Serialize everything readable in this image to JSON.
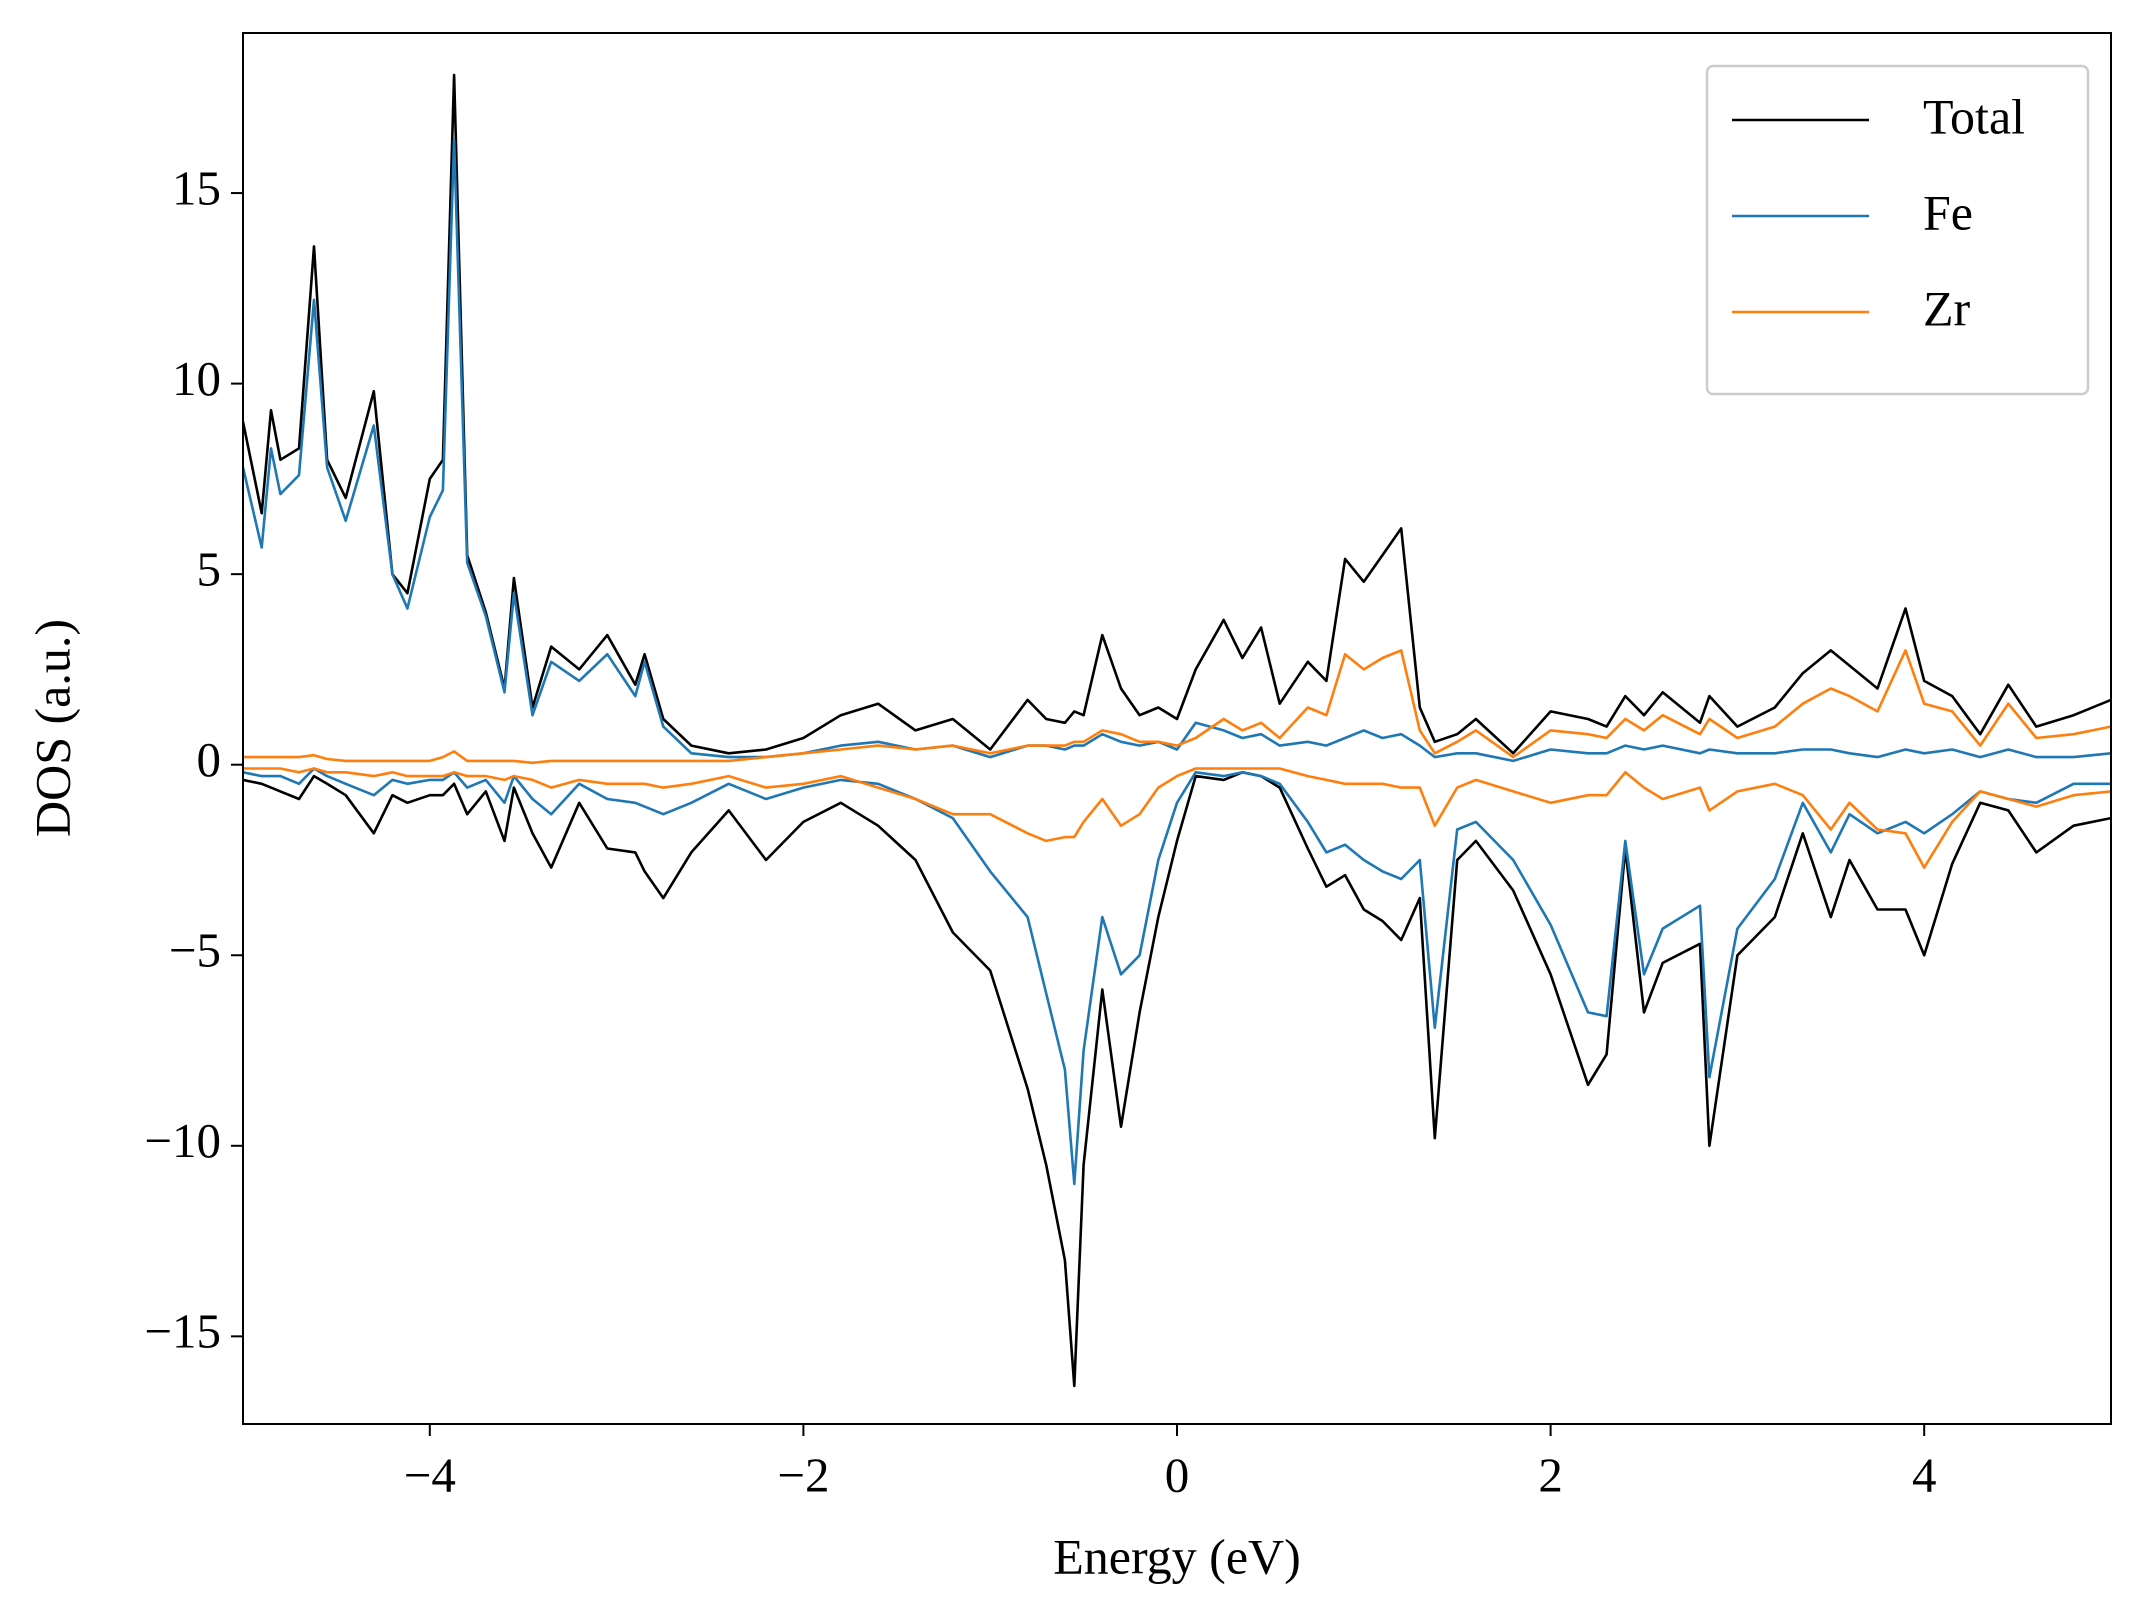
{
  "chart_data": {
    "type": "line",
    "xlabel": "Energy (eV)",
    "ylabel": "DOS (a.u.)",
    "x": [
      -5,
      -4.9,
      -4.85,
      -4.8,
      -4.7,
      -4.62,
      -4.55,
      -4.45,
      -4.3,
      -4.2,
      -4.12,
      -4.0,
      -3.93,
      -3.87,
      -3.8,
      -3.7,
      -3.6,
      -3.55,
      -3.45,
      -3.35,
      -3.2,
      -3.05,
      -2.9,
      -2.85,
      -2.75,
      -2.6,
      -2.4,
      -2.2,
      -2.0,
      -1.8,
      -1.6,
      -1.4,
      -1.2,
      -1.0,
      -0.8,
      -0.7,
      -0.6,
      -0.55,
      -0.5,
      -0.4,
      -0.3,
      -0.2,
      -0.1,
      0,
      0.1,
      0.25,
      0.35,
      0.45,
      0.55,
      0.7,
      0.8,
      0.9,
      1.0,
      1.1,
      1.2,
      1.3,
      1.38,
      1.5,
      1.6,
      1.8,
      2.0,
      2.2,
      2.3,
      2.4,
      2.5,
      2.6,
      2.8,
      2.85,
      3.0,
      3.2,
      3.35,
      3.5,
      3.6,
      3.75,
      3.9,
      4.0,
      4.15,
      4.3,
      4.45,
      4.6,
      4.8,
      5.0
    ],
    "series": [
      {
        "name": "Total",
        "color": "#000000",
        "values": [
          9.0,
          6.6,
          9.3,
          8.0,
          8.3,
          13.6,
          8.0,
          7.0,
          9.8,
          5.0,
          4.5,
          7.5,
          8.0,
          18.1,
          5.5,
          4.0,
          2.0,
          4.9,
          1.5,
          3.1,
          2.5,
          3.4,
          2.1,
          2.9,
          1.2,
          0.5,
          0.3,
          0.4,
          0.7,
          1.3,
          1.6,
          0.9,
          1.2,
          0.4,
          1.7,
          1.2,
          1.1,
          1.4,
          1.3,
          3.4,
          2.0,
          1.3,
          1.5,
          1.2,
          2.5,
          3.8,
          2.8,
          3.6,
          1.6,
          2.7,
          2.2,
          5.4,
          4.8,
          5.5,
          6.2,
          1.5,
          0.6,
          0.8,
          1.2,
          0.3,
          1.4,
          1.2,
          1.0,
          1.8,
          1.3,
          1.9,
          1.1,
          1.8,
          1.0,
          1.5,
          2.4,
          3.0,
          2.6,
          2.0,
          4.1,
          2.2,
          1.8,
          0.8,
          2.1,
          1.0,
          1.3,
          1.7
        ],
        "values_down": [
          -0.4,
          -0.5,
          -0.6,
          -0.7,
          -0.9,
          -0.3,
          -0.5,
          -0.8,
          -1.8,
          -0.8,
          -1.0,
          -0.8,
          -0.8,
          -0.5,
          -1.3,
          -0.7,
          -2.0,
          -0.6,
          -1.8,
          -2.7,
          -1.0,
          -2.2,
          -2.3,
          -2.8,
          -3.5,
          -2.3,
          -1.2,
          -2.5,
          -1.5,
          -1.0,
          -1.6,
          -2.5,
          -4.4,
          -5.4,
          -8.5,
          -10.5,
          -13.0,
          -16.3,
          -10.5,
          -5.9,
          -9.5,
          -6.5,
          -4.0,
          -2.0,
          -0.3,
          -0.4,
          -0.2,
          -0.3,
          -0.6,
          -2.2,
          -3.2,
          -2.9,
          -3.8,
          -4.1,
          -4.6,
          -3.5,
          -9.8,
          -2.5,
          -2.0,
          -3.3,
          -5.5,
          -8.4,
          -7.6,
          -2.2,
          -6.5,
          -5.2,
          -4.7,
          -10.0,
          -5.0,
          -4.0,
          -1.8,
          -4.0,
          -2.5,
          -3.8,
          -3.8,
          -5.0,
          -2.6,
          -1.0,
          -1.2,
          -2.3,
          -1.6,
          -1.4
        ]
      },
      {
        "name": "Fe",
        "color": "#1f77b4",
        "values": [
          7.8,
          5.7,
          8.3,
          7.1,
          7.6,
          12.2,
          7.8,
          6.4,
          8.9,
          5.0,
          4.1,
          6.5,
          7.2,
          16.4,
          5.3,
          3.9,
          1.9,
          4.5,
          1.3,
          2.7,
          2.2,
          2.9,
          1.8,
          2.7,
          1.0,
          0.3,
          0.2,
          0.2,
          0.3,
          0.5,
          0.6,
          0.4,
          0.5,
          0.2,
          0.5,
          0.5,
          0.4,
          0.5,
          0.5,
          0.8,
          0.6,
          0.5,
          0.6,
          0.4,
          1.1,
          0.9,
          0.7,
          0.8,
          0.5,
          0.6,
          0.5,
          0.7,
          0.9,
          0.7,
          0.8,
          0.5,
          0.2,
          0.3,
          0.3,
          0.1,
          0.4,
          0.3,
          0.3,
          0.5,
          0.4,
          0.5,
          0.3,
          0.4,
          0.3,
          0.3,
          0.4,
          0.4,
          0.3,
          0.2,
          0.4,
          0.3,
          0.4,
          0.2,
          0.4,
          0.2,
          0.2,
          0.3
        ],
        "values_down": [
          -0.2,
          -0.3,
          -0.3,
          -0.3,
          -0.5,
          -0.1,
          -0.3,
          -0.5,
          -0.8,
          -0.4,
          -0.5,
          -0.4,
          -0.4,
          -0.2,
          -0.6,
          -0.4,
          -1.0,
          -0.3,
          -0.9,
          -1.3,
          -0.5,
          -0.9,
          -1.0,
          -1.1,
          -1.3,
          -1.0,
          -0.5,
          -0.9,
          -0.6,
          -0.4,
          -0.5,
          -0.9,
          -1.4,
          -2.8,
          -4.0,
          -6.0,
          -8.0,
          -11.0,
          -7.5,
          -4.0,
          -5.5,
          -5.0,
          -2.5,
          -1.0,
          -0.2,
          -0.3,
          -0.2,
          -0.3,
          -0.5,
          -1.5,
          -2.3,
          -2.1,
          -2.5,
          -2.8,
          -3.0,
          -2.5,
          -6.9,
          -1.7,
          -1.5,
          -2.5,
          -4.2,
          -6.5,
          -6.6,
          -2.0,
          -5.5,
          -4.3,
          -3.7,
          -8.2,
          -4.3,
          -3.0,
          -1.0,
          -2.3,
          -1.3,
          -1.8,
          -1.5,
          -1.8,
          -1.3,
          -0.7,
          -0.9,
          -1.0,
          -0.5,
          -0.5
        ]
      },
      {
        "name": "Zr",
        "color": "#ff7f0e",
        "values": [
          0.2,
          0.2,
          0.2,
          0.2,
          0.2,
          0.25,
          0.15,
          0.1,
          0.1,
          0.1,
          0.1,
          0.1,
          0.2,
          0.35,
          0.1,
          0.1,
          0.1,
          0.1,
          0.05,
          0.1,
          0.1,
          0.1,
          0.1,
          0.1,
          0.1,
          0.1,
          0.1,
          0.2,
          0.3,
          0.4,
          0.5,
          0.4,
          0.5,
          0.3,
          0.5,
          0.5,
          0.5,
          0.6,
          0.6,
          0.9,
          0.8,
          0.6,
          0.6,
          0.5,
          0.7,
          1.2,
          0.9,
          1.1,
          0.7,
          1.5,
          1.3,
          2.9,
          2.5,
          2.8,
          3.0,
          0.9,
          0.3,
          0.6,
          0.9,
          0.2,
          0.9,
          0.8,
          0.7,
          1.2,
          0.9,
          1.3,
          0.8,
          1.2,
          0.7,
          1.0,
          1.6,
          2.0,
          1.8,
          1.4,
          3.0,
          1.6,
          1.4,
          0.5,
          1.6,
          0.7,
          0.8,
          1.0
        ],
        "values_down": [
          -0.1,
          -0.1,
          -0.1,
          -0.1,
          -0.2,
          -0.1,
          -0.2,
          -0.2,
          -0.3,
          -0.2,
          -0.3,
          -0.3,
          -0.3,
          -0.2,
          -0.3,
          -0.3,
          -0.4,
          -0.3,
          -0.4,
          -0.6,
          -0.4,
          -0.5,
          -0.5,
          -0.5,
          -0.6,
          -0.5,
          -0.3,
          -0.6,
          -0.5,
          -0.3,
          -0.6,
          -0.9,
          -1.3,
          -1.3,
          -1.8,
          -2.0,
          -1.9,
          -1.9,
          -1.5,
          -0.9,
          -1.6,
          -1.3,
          -0.6,
          -0.3,
          -0.1,
          -0.1,
          -0.1,
          -0.1,
          -0.1,
          -0.3,
          -0.4,
          -0.5,
          -0.5,
          -0.5,
          -0.6,
          -0.6,
          -1.6,
          -0.6,
          -0.4,
          -0.7,
          -1.0,
          -0.8,
          -0.8,
          -0.2,
          -0.6,
          -0.9,
          -0.6,
          -1.2,
          -0.7,
          -0.5,
          -0.8,
          -1.7,
          -1.0,
          -1.7,
          -1.8,
          -2.7,
          -1.5,
          -0.7,
          -0.9,
          -1.1,
          -0.8,
          -0.7
        ]
      }
    ],
    "xlim": [
      -5,
      5
    ],
    "xticks": [
      {
        "value": -4,
        "label": "−4"
      },
      {
        "value": -2,
        "label": "−2"
      },
      0,
      2,
      4
    ],
    "ylim": [
      -17.3,
      19.2
    ],
    "yticks": [
      {
        "value": -15,
        "label": "−15"
      },
      {
        "value": -10,
        "label": "−10"
      },
      {
        "value": -5,
        "label": "−5"
      },
      0,
      5,
      10,
      15
    ],
    "grid": false,
    "legend": "upper right"
  }
}
